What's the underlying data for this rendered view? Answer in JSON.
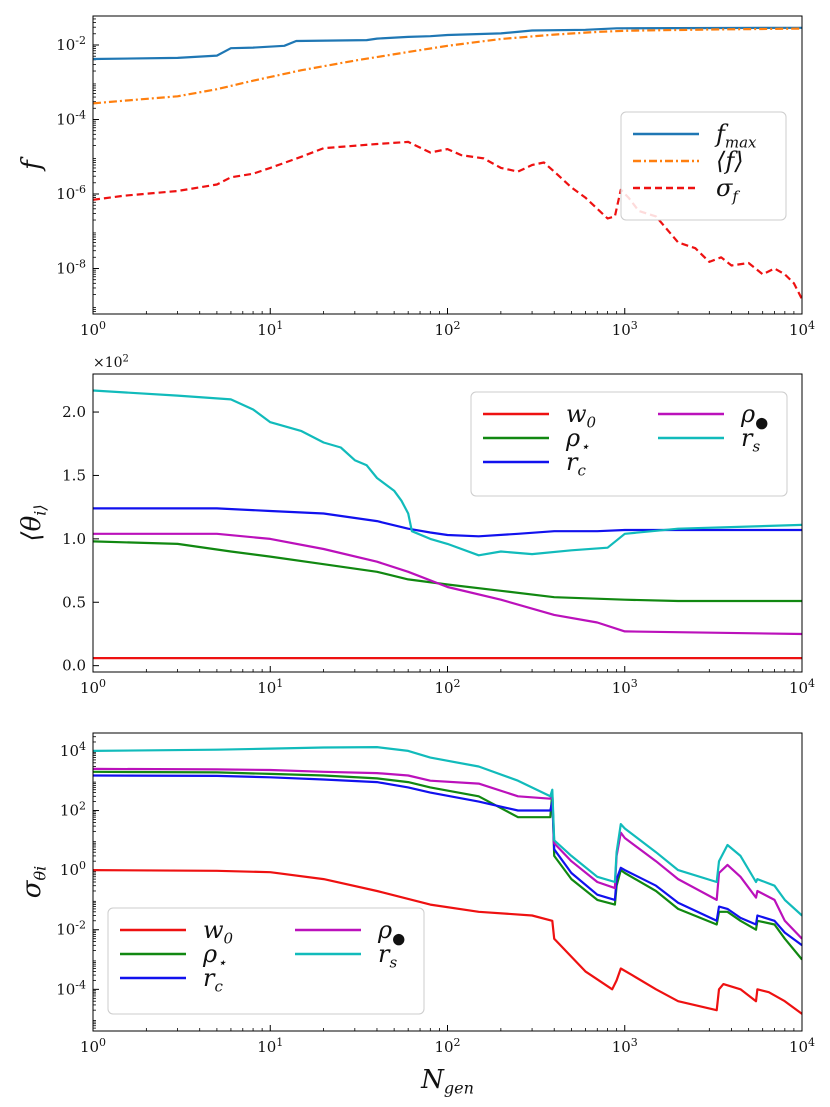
{
  "chart_data": [
    {
      "type": "line",
      "panel": "top",
      "xscale": "log",
      "yscale": "log",
      "xlim": [
        1,
        10000
      ],
      "ylim": [
        6e-10,
        0.06
      ],
      "xticks": [
        1,
        10,
        100,
        1000,
        10000
      ],
      "xticklabels": [
        "10^0",
        "10^1",
        "10^2",
        "10^3",
        "10^4"
      ],
      "yticks": [
        1e-08,
        1e-06,
        0.0001,
        0.01
      ],
      "yticklabels": [
        "10^-8",
        "10^-6",
        "10^-4",
        "10^-2"
      ],
      "ylabel": "f",
      "xlabel": "",
      "legend": {
        "position": "right",
        "columns": 1
      },
      "series": [
        {
          "name": "f_max",
          "color": "#1f77b4",
          "dash": "solid",
          "x": [
            1,
            3,
            5,
            6,
            8,
            12,
            14,
            35,
            40,
            60,
            80,
            100,
            200,
            300,
            600,
            900,
            10000
          ],
          "y": [
            0.0042,
            0.0045,
            0.0052,
            0.0082,
            0.0085,
            0.0095,
            0.0128,
            0.0135,
            0.0148,
            0.0165,
            0.0172,
            0.0185,
            0.0205,
            0.0245,
            0.0255,
            0.028,
            0.029
          ]
        },
        {
          "name": "⟨f⟩",
          "color": "#ff7f0e",
          "dash": "dashdot",
          "x": [
            1,
            1.5,
            3,
            5,
            8,
            15,
            30,
            60,
            100,
            200,
            400,
            700,
            1000,
            3000,
            10000
          ],
          "y": [
            0.00027,
            0.00032,
            0.00042,
            0.00065,
            0.0011,
            0.0021,
            0.0038,
            0.0065,
            0.0095,
            0.0145,
            0.019,
            0.0225,
            0.024,
            0.026,
            0.0275
          ]
        },
        {
          "name": "σ_f",
          "color": "#ee1111",
          "dash": "dashed",
          "x": [
            1,
            1.5,
            3,
            5,
            6,
            8,
            10,
            15,
            20,
            40,
            60,
            80,
            100,
            120,
            160,
            200,
            250,
            300,
            350,
            400,
            500,
            600,
            700,
            800,
            880,
            950,
            1050,
            1200,
            1500,
            2000,
            2500,
            3000,
            3500,
            4000,
            5000,
            6000,
            7000,
            8000,
            9000,
            10000
          ],
          "y": [
            7e-07,
            9e-07,
            1.2e-06,
            1.8e-06,
            2.8e-06,
            3.5e-06,
            5e-06,
            1e-05,
            1.7e-05,
            2.2e-05,
            2.5e-05,
            1.3e-05,
            1.6e-05,
            1.1e-05,
            9e-06,
            5e-06,
            4e-06,
            6e-06,
            7e-06,
            4e-06,
            1.5e-06,
            8e-07,
            4e-07,
            2.2e-07,
            2.5e-07,
            1.3e-06,
            8e-07,
            3.5e-07,
            2.5e-07,
            5e-08,
            3.5e-08,
            1.5e-08,
            2e-08,
            1.2e-08,
            1.4e-08,
            7e-09,
            1e-08,
            7e-09,
            4e-09,
            1.5e-09
          ]
        }
      ]
    },
    {
      "type": "line",
      "panel": "middle",
      "xscale": "log",
      "yscale": "linear",
      "xlim": [
        1,
        10000
      ],
      "ylim": [
        -0.05,
        2.3
      ],
      "xticks": [
        1,
        10,
        100,
        1000,
        10000
      ],
      "xticklabels": [
        "10^0",
        "10^1",
        "10^2",
        "10^3",
        "10^4"
      ],
      "yticks": [
        0.0,
        0.5,
        1.0,
        1.5,
        2.0
      ],
      "yticklabels": [
        "0.0",
        "0.5",
        "1.0",
        "1.5",
        "2.0"
      ],
      "multiplier": "×10^2",
      "ylabel": "⟨θ_i⟩",
      "xlabel": "",
      "legend": {
        "position": "top-right",
        "columns": 2
      },
      "series": [
        {
          "name": "w_0",
          "color": "#ee1111",
          "x": [
            1,
            10000
          ],
          "y": [
            0.06,
            0.06
          ]
        },
        {
          "name": "ρ_⋆",
          "color": "#118811",
          "x": [
            1,
            3,
            6,
            10,
            20,
            40,
            60,
            100,
            200,
            400,
            1000,
            2000,
            10000
          ],
          "y": [
            0.98,
            0.96,
            0.9,
            0.86,
            0.8,
            0.74,
            0.68,
            0.64,
            0.59,
            0.54,
            0.52,
            0.51,
            0.51
          ]
        },
        {
          "name": "r_c",
          "color": "#1111ee",
          "x": [
            1,
            5,
            10,
            20,
            40,
            60,
            80,
            100,
            150,
            250,
            400,
            700,
            1000,
            10000
          ],
          "y": [
            1.24,
            1.24,
            1.22,
            1.2,
            1.14,
            1.08,
            1.05,
            1.03,
            1.02,
            1.04,
            1.06,
            1.06,
            1.07,
            1.07
          ]
        },
        {
          "name": "ρ_●",
          "color": "#bb11bb",
          "x": [
            1,
            5,
            10,
            20,
            40,
            60,
            100,
            200,
            400,
            700,
            1000,
            10000
          ],
          "y": [
            1.04,
            1.04,
            1.0,
            0.92,
            0.82,
            0.74,
            0.62,
            0.52,
            0.4,
            0.34,
            0.27,
            0.25
          ]
        },
        {
          "name": "r_s",
          "color": "#11bbbb",
          "x": [
            1,
            3,
            6,
            8,
            10,
            15,
            20,
            25,
            30,
            35,
            40,
            50,
            55,
            60,
            63,
            80,
            100,
            150,
            200,
            300,
            500,
            800,
            1000,
            2000,
            10000
          ],
          "y": [
            2.17,
            2.13,
            2.1,
            2.02,
            1.92,
            1.85,
            1.76,
            1.72,
            1.62,
            1.58,
            1.48,
            1.38,
            1.3,
            1.2,
            1.06,
            1.0,
            0.96,
            0.87,
            0.9,
            0.88,
            0.91,
            0.93,
            1.04,
            1.08,
            1.11
          ]
        }
      ]
    },
    {
      "type": "line",
      "panel": "bottom",
      "xscale": "log",
      "yscale": "log",
      "xlim": [
        1,
        10000
      ],
      "ylim": [
        4e-06,
        40000
      ],
      "xticks": [
        1,
        10,
        100,
        1000,
        10000
      ],
      "xticklabels": [
        "10^0",
        "10^1",
        "10^2",
        "10^3",
        "10^4"
      ],
      "yticks": [
        0.0001,
        0.01,
        1,
        100,
        10000
      ],
      "yticklabels": [
        "10^-4",
        "10^-2",
        "10^0",
        "10^2",
        "10^4"
      ],
      "ylabel": "σ_θi",
      "xlabel": "N_gen",
      "legend": {
        "position": "bottom-left",
        "columns": 2
      },
      "series": [
        {
          "name": "w_0",
          "color": "#ee1111",
          "x": [
            1,
            5,
            10,
            20,
            40,
            80,
            150,
            300,
            390,
            400,
            600,
            850,
            900,
            950,
            1100,
            1500,
            2000,
            3300,
            3400,
            3600,
            4500,
            5500,
            5600,
            6500,
            8000,
            10000
          ],
          "y": [
            1.0,
            0.95,
            0.85,
            0.5,
            0.2,
            0.07,
            0.04,
            0.03,
            0.02,
            0.005,
            0.0004,
            0.0001,
            0.0002,
            0.0005,
            0.0003,
            0.0001,
            4e-05,
            2e-05,
            0.0001,
            0.00015,
            0.0001,
            4e-05,
            0.0001,
            8e-05,
            4e-05,
            1.5e-05
          ]
        },
        {
          "name": "ρ_⋆",
          "color": "#118811",
          "x": [
            1,
            5,
            10,
            20,
            40,
            60,
            80,
            150,
            250,
            380,
            390,
            400,
            500,
            700,
            880,
            900,
            950,
            1000,
            1500,
            2000,
            3300,
            3400,
            3800,
            4500,
            5500,
            5600,
            7000,
            8000,
            10000
          ],
          "y": [
            2000,
            1900,
            1700,
            1500,
            1200,
            900,
            600,
            300,
            60,
            60,
            400,
            3.0,
            0.5,
            0.1,
            0.07,
            0.3,
            1.0,
            0.8,
            0.2,
            0.05,
            0.015,
            0.04,
            0.04,
            0.02,
            0.01,
            0.02,
            0.015,
            0.005,
            0.001
          ]
        },
        {
          "name": "r_c",
          "color": "#1111ee",
          "x": [
            1,
            5,
            10,
            20,
            40,
            60,
            80,
            150,
            250,
            380,
            390,
            400,
            500,
            700,
            880,
            900,
            950,
            1000,
            1500,
            2000,
            3300,
            3400,
            3800,
            4500,
            5500,
            5600,
            7000,
            8000,
            10000
          ],
          "y": [
            1500,
            1450,
            1300,
            1100,
            900,
            600,
            400,
            200,
            100,
            100,
            200,
            5.0,
            0.8,
            0.15,
            0.1,
            0.5,
            1.2,
            1.0,
            0.3,
            0.08,
            0.02,
            0.06,
            0.05,
            0.025,
            0.015,
            0.03,
            0.02,
            0.008,
            0.003
          ]
        },
        {
          "name": "ρ_●",
          "color": "#bb11bb",
          "x": [
            1,
            5,
            10,
            20,
            40,
            60,
            80,
            150,
            250,
            380,
            390,
            400,
            500,
            700,
            880,
            900,
            950,
            1000,
            1500,
            2000,
            3300,
            3400,
            3800,
            4500,
            5500,
            5600,
            7000,
            8000,
            10000
          ],
          "y": [
            2500,
            2400,
            2300,
            2000,
            1800,
            1500,
            1000,
            800,
            300,
            250,
            350,
            8.0,
            2.0,
            0.4,
            0.25,
            3.0,
            18,
            12,
            2.0,
            0.5,
            0.1,
            0.8,
            1.5,
            0.6,
            0.12,
            0.2,
            0.1,
            0.02,
            0.005
          ]
        },
        {
          "name": "r_s",
          "color": "#11bbbb",
          "x": [
            1,
            5,
            10,
            20,
            40,
            60,
            80,
            150,
            250,
            380,
            390,
            400,
            500,
            700,
            880,
            900,
            950,
            1000,
            1500,
            2000,
            3300,
            3400,
            3800,
            4500,
            5500,
            5600,
            7000,
            8000,
            10000
          ],
          "y": [
            10000,
            11000,
            12000,
            13000,
            13500,
            10000,
            6000,
            3000,
            1000,
            300,
            500,
            10.0,
            3.0,
            0.6,
            0.4,
            4.0,
            35,
            25,
            4.0,
            1.0,
            0.4,
            2.0,
            7.0,
            3.0,
            0.4,
            0.5,
            0.3,
            0.1,
            0.03
          ]
        }
      ]
    }
  ]
}
